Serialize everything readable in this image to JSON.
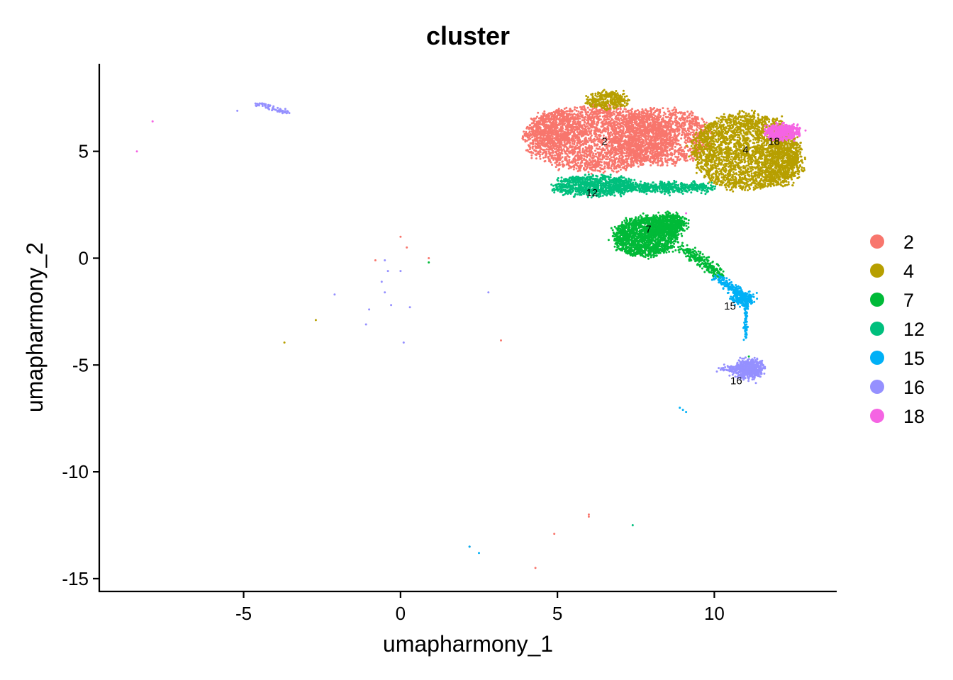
{
  "chart_data": {
    "type": "scatter",
    "title": "cluster",
    "xlabel": "umapharmony_1",
    "ylabel": "umapharmony_2",
    "xlim": [
      -9.6,
      13.9
    ],
    "ylim": [
      -15.6,
      9.1
    ],
    "xticks": [
      -5,
      0,
      5,
      10
    ],
    "yticks": [
      5,
      0,
      -5,
      -10,
      -15
    ],
    "xtick_labels": [
      "-5",
      "0",
      "5",
      "10"
    ],
    "ytick_labels": [
      "5",
      "0",
      "-5",
      "-10",
      "-15"
    ],
    "grid": false,
    "legend_position": "right",
    "series": [
      {
        "name": "2",
        "color": "#F8766D",
        "label": "2",
        "label_at": [
          6.5,
          5.3
        ],
        "regions": [
          {
            "cx": 6.3,
            "cy": 5.6,
            "rx": 2.4,
            "ry": 1.5,
            "n": 2600
          },
          {
            "cx": 8.3,
            "cy": 5.7,
            "rx": 1.6,
            "ry": 1.3,
            "n": 1400
          },
          {
            "cx": 5.0,
            "cy": 6.0,
            "rx": 0.8,
            "ry": 0.9,
            "n": 500
          }
        ],
        "outliers": [
          [
            0.0,
            1.0
          ],
          [
            0.2,
            0.5
          ],
          [
            0.9,
            0.0
          ],
          [
            -0.8,
            -0.1
          ],
          [
            3.2,
            -3.85
          ],
          [
            6.0,
            -12.0
          ],
          [
            6.0,
            -12.1
          ],
          [
            4.9,
            -12.9
          ],
          [
            4.3,
            -14.5
          ],
          [
            2.2,
            -13.5
          ]
        ]
      },
      {
        "name": "4",
        "color": "#B79F00",
        "label": "4",
        "label_at": [
          11.0,
          4.9
        ],
        "regions": [
          {
            "cx": 11.0,
            "cy": 5.0,
            "rx": 1.7,
            "ry": 1.8,
            "n": 2600
          },
          {
            "cx": 12.2,
            "cy": 4.5,
            "rx": 0.6,
            "ry": 1.1,
            "n": 500
          },
          {
            "cx": 6.6,
            "cy": 7.4,
            "rx": 0.6,
            "ry": 0.4,
            "n": 300
          }
        ],
        "outliers": [
          [
            -2.7,
            -2.9
          ],
          [
            -3.7,
            -3.95
          ]
        ]
      },
      {
        "name": "7",
        "color": "#00BA38",
        "label": "7",
        "label_at": [
          7.9,
          1.2
        ],
        "regions": [
          {
            "cx": 7.8,
            "cy": 1.0,
            "rx": 1.0,
            "ry": 0.9,
            "n": 1500
          },
          {
            "cx": 8.5,
            "cy": 1.6,
            "rx": 0.6,
            "ry": 0.45,
            "n": 500
          }
        ],
        "trail": {
          "from": [
            9.0,
            0.5
          ],
          "to": [
            10.2,
            -0.8
          ],
          "n": 250,
          "spread": 0.12
        },
        "outliers": [
          [
            11.1,
            -4.6
          ],
          [
            0.9,
            -0.2
          ]
        ]
      },
      {
        "name": "12",
        "color": "#00BF7D",
        "label": "12",
        "label_at": [
          6.1,
          2.9
        ],
        "regions": [
          {
            "cx": 6.2,
            "cy": 3.4,
            "rx": 1.3,
            "ry": 0.45,
            "n": 900
          },
          {
            "cx": 8.5,
            "cy": 3.3,
            "rx": 1.5,
            "ry": 0.18,
            "n": 500
          }
        ],
        "outliers": [
          [
            7.4,
            -12.5
          ]
        ]
      },
      {
        "name": "15",
        "color": "#00B0F6",
        "label": "15",
        "label_at": [
          10.5,
          -2.4
        ],
        "regions": [
          {
            "cx": 10.9,
            "cy": -1.9,
            "rx": 0.3,
            "ry": 0.25,
            "n": 200
          }
        ],
        "trail": {
          "from": [
            10.1,
            -0.9
          ],
          "to": [
            10.9,
            -1.7
          ],
          "n": 150,
          "spread": 0.1
        },
        "trail2": {
          "from": [
            11.0,
            -2.2
          ],
          "to": [
            11.0,
            -3.8
          ],
          "n": 60,
          "spread": 0.03
        },
        "outliers": [
          [
            9.0,
            -7.1
          ],
          [
            8.9,
            -7.0
          ],
          [
            9.1,
            -7.2
          ],
          [
            2.5,
            -13.8
          ],
          [
            2.2,
            -13.5
          ],
          [
            10.5,
            -1.9
          ]
        ]
      },
      {
        "name": "16",
        "color": "#9590FF",
        "label": "16",
        "label_at": [
          10.7,
          -5.9
        ],
        "regions": [
          {
            "cx": 11.1,
            "cy": -5.2,
            "rx": 0.45,
            "ry": 0.4,
            "n": 500
          },
          {
            "cx": 10.5,
            "cy": -5.2,
            "rx": 0.4,
            "ry": 0.06,
            "n": 60
          }
        ],
        "trail": {
          "from": [
            -4.6,
            7.25
          ],
          "to": [
            -3.6,
            6.8
          ],
          "n": 60,
          "spread": 0.06
        },
        "outliers": [
          [
            -5.2,
            6.9
          ],
          [
            -0.5,
            -0.1
          ],
          [
            -0.4,
            -0.6
          ],
          [
            0.0,
            -0.6
          ],
          [
            -0.6,
            -1.1
          ],
          [
            -0.5,
            -1.6
          ],
          [
            -2.1,
            -1.7
          ],
          [
            -0.3,
            -2.2
          ],
          [
            -1.0,
            -2.4
          ],
          [
            0.3,
            -2.3
          ],
          [
            -1.1,
            -3.1
          ],
          [
            0.1,
            -3.95
          ],
          [
            2.8,
            -1.6
          ]
        ]
      },
      {
        "name": "18",
        "color": "#F564E3",
        "label": "18",
        "label_at": [
          11.9,
          5.3
        ],
        "regions": [
          {
            "cx": 12.2,
            "cy": 5.9,
            "rx": 0.55,
            "ry": 0.35,
            "n": 400
          }
        ],
        "outliers": [
          [
            -8.4,
            5.0
          ],
          [
            -7.9,
            6.4
          ],
          [
            9.1,
            2.1
          ]
        ]
      }
    ]
  }
}
